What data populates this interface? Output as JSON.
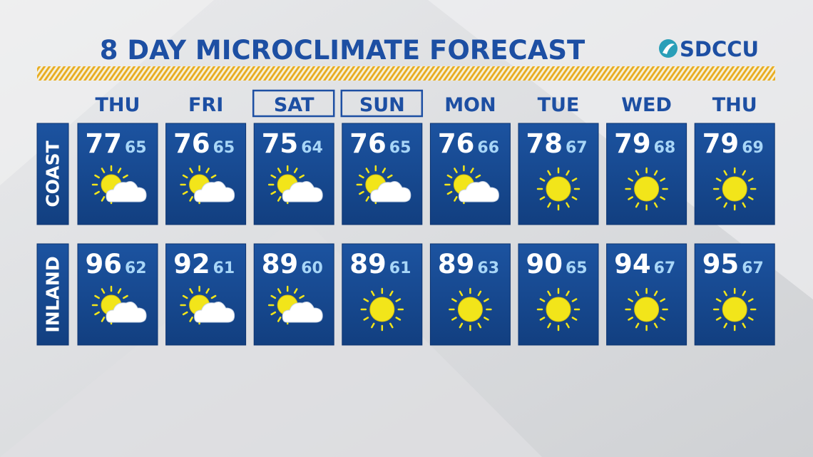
{
  "title": "8 DAY MICROCLIMATE FORECAST",
  "logo": "SDCCU",
  "days": [
    {
      "label": "THU"
    },
    {
      "label": "FRI"
    },
    {
      "label": "SAT",
      "boxed": true
    },
    {
      "label": "SUN",
      "boxed": true
    },
    {
      "label": "MON"
    },
    {
      "label": "TUE"
    },
    {
      "label": "WED"
    },
    {
      "label": "THU"
    }
  ],
  "regions": [
    {
      "label": "COAST",
      "highs": [
        77,
        76,
        75,
        76,
        76,
        78,
        79,
        79
      ],
      "lows": [
        65,
        65,
        64,
        65,
        66,
        67,
        68,
        69
      ],
      "icons": [
        "partly-cloudy",
        "partly-cloudy",
        "partly-cloudy",
        "partly-cloudy",
        "partly-cloudy",
        "sunny",
        "sunny",
        "sunny"
      ]
    },
    {
      "label": "INLAND",
      "highs": [
        96,
        92,
        89,
        89,
        89,
        90,
        94,
        95
      ],
      "lows": [
        62,
        61,
        60,
        61,
        63,
        65,
        67,
        67
      ],
      "icons": [
        "partly-cloudy",
        "partly-cloudy",
        "partly-cloudy",
        "sunny",
        "sunny",
        "sunny",
        "sunny",
        "sunny"
      ]
    }
  ]
}
